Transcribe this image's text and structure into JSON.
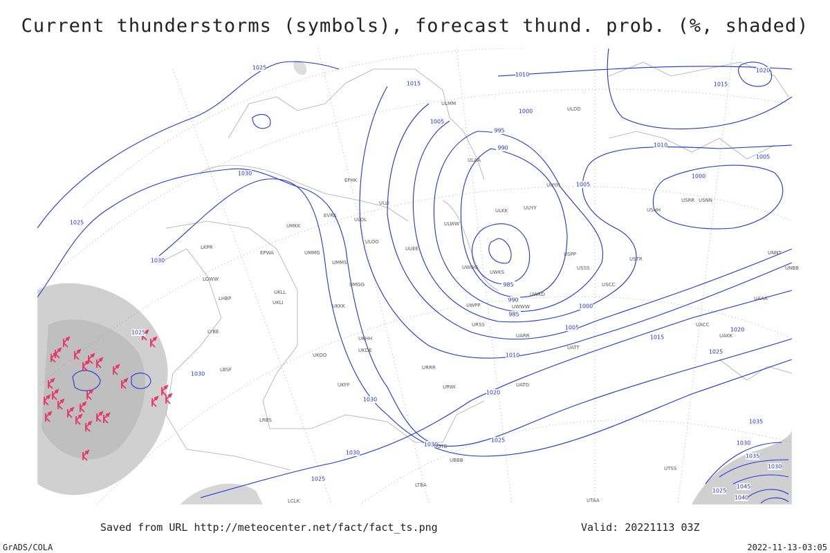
{
  "title": "Current thunderstorms (symbols), forecast thund. prob. (%, shaded)",
  "footer": {
    "source": "Saved from URL http://meteocenter.net/fact/fact_ts.png",
    "valid": "Valid: 20221113 03Z",
    "software": "GrADS/COLA",
    "timestamp": "2022-11-13-03:05"
  },
  "isobar_labels": [
    1025,
    1015,
    1010,
    1000,
    1005,
    995,
    990,
    1020,
    1015,
    1010,
    1005,
    1005,
    1000,
    1030,
    1025,
    1030,
    985,
    990,
    985,
    1000,
    1005,
    1015,
    1020,
    1025,
    1010,
    1025,
    1030,
    1020,
    1030,
    1030,
    1025,
    1030,
    1025,
    1035,
    1030,
    1035,
    1030,
    1025,
    1045,
    1040
  ],
  "stations": [
    "EFHK",
    "ULLI",
    "ULOL",
    "UMKK",
    "EVRA",
    "ULOO",
    "UUEE",
    "UMMS",
    "UMGG",
    "UKLL",
    "UKLI",
    "UKKK",
    "UKHH",
    "UKDE",
    "UKFF",
    "UKOO",
    "LRBS",
    "LBSF",
    "LYBE",
    "LHBP",
    "LOWW",
    "LKPR",
    "EPWA",
    "UMMG",
    "UUYY",
    "ULKK",
    "ULWW",
    "UWGG",
    "UWKS",
    "UWKD",
    "UWWW",
    "UWPP",
    "URSS",
    "URRR",
    "URWI",
    "UATG",
    "UATT",
    "UARR",
    "USSS",
    "USCC",
    "USTR",
    "UACC",
    "UAKK",
    "UAAA",
    "UNNT",
    "UNBB",
    "ULMM",
    "ULAA",
    "USRR",
    "USNN",
    "USHH",
    "USPP",
    "UUYH",
    "ULDD",
    "UGTB",
    "UBBB",
    "LTBA",
    "LCLK",
    "UTAA",
    "UTSS"
  ]
}
